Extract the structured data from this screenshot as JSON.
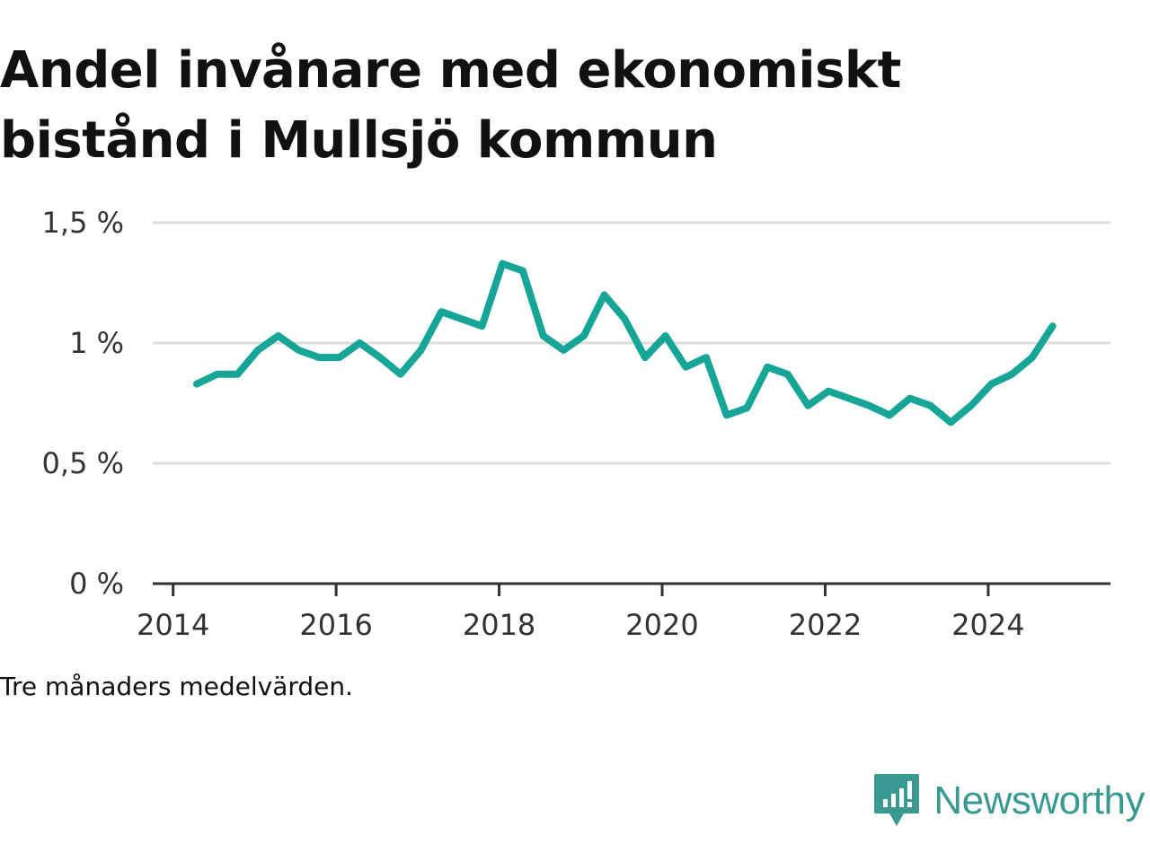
{
  "title_line1": "Andel invånare med ekonomiskt",
  "title_line2": "bistånd i Mullsjö kommun",
  "caption": "Tre månaders medelvärden.",
  "brand": {
    "name": "Newsworthy",
    "icon": "newsworthy-logo-icon",
    "color": "#3a9a91"
  },
  "colors": {
    "line": "#16a596",
    "grid": "#dddddd",
    "axis": "#333333"
  },
  "chart_data": {
    "type": "line",
    "ylim": [
      0,
      1.5
    ],
    "xlim": [
      2013.75,
      2025.5
    ],
    "grid": true,
    "y_ticks": [
      {
        "value": 0,
        "label": "0 %"
      },
      {
        "value": 0.5,
        "label": "0,5 %"
      },
      {
        "value": 1,
        "label": "1 %"
      },
      {
        "value": 1.5,
        "label": "1,5 %"
      }
    ],
    "x_ticks": [
      {
        "value": 2014,
        "label": "2014"
      },
      {
        "value": 2016,
        "label": "2016"
      },
      {
        "value": 2018,
        "label": "2018"
      },
      {
        "value": 2020,
        "label": "2020"
      },
      {
        "value": 2022,
        "label": "2022"
      },
      {
        "value": 2024,
        "label": "2024"
      }
    ],
    "series": [
      {
        "x": [
          2014.29,
          2014.54,
          2014.79,
          2015.04,
          2015.29,
          2015.54,
          2015.79,
          2016.04,
          2016.29,
          2016.54,
          2016.79,
          2017.04,
          2017.29,
          2017.54,
          2017.79,
          2018.04,
          2018.29,
          2018.54,
          2018.79,
          2019.04,
          2019.29,
          2019.54,
          2019.79,
          2020.04,
          2020.29,
          2020.54,
          2020.79,
          2021.04,
          2021.29,
          2021.54,
          2021.79,
          2022.04,
          2022.29,
          2022.54,
          2022.79,
          2023.04,
          2023.29,
          2023.54,
          2023.79,
          2024.04,
          2024.29,
          2024.54,
          2024.79
        ],
        "values": [
          0.83,
          0.87,
          0.87,
          0.97,
          1.03,
          0.97,
          0.94,
          0.94,
          1.0,
          0.94,
          0.87,
          0.97,
          1.13,
          1.1,
          1.07,
          1.33,
          1.3,
          1.03,
          0.97,
          1.03,
          1.2,
          1.1,
          0.94,
          1.03,
          0.9,
          0.94,
          0.7,
          0.73,
          0.9,
          0.87,
          0.74,
          0.8,
          0.77,
          0.74,
          0.7,
          0.77,
          0.74,
          0.67,
          0.74,
          0.83,
          0.87,
          0.94,
          1.07
        ]
      }
    ]
  }
}
